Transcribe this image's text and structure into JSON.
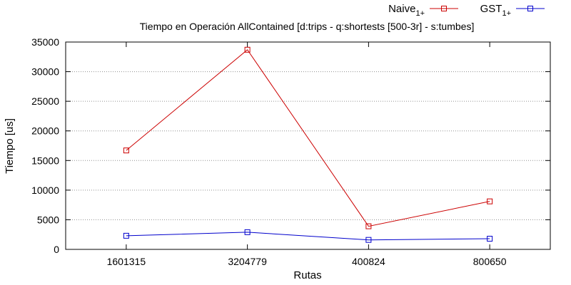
{
  "chart_data": {
    "type": "line",
    "title": "Tiempo en Operación AllContained [d:trips - q:shortests [500-3r] - s:tumbes]",
    "xlabel": "Rutas",
    "ylabel": "Tiempo [us]",
    "categories": [
      "1601315",
      "3204779",
      "400824",
      "800650"
    ],
    "ylim": [
      0,
      35000
    ],
    "yticks": [
      0,
      5000,
      10000,
      15000,
      20000,
      25000,
      30000,
      35000
    ],
    "grid": true,
    "legend_position": "top-right",
    "series": [
      {
        "name": "Naive",
        "name_sub": "1+",
        "color": "#cc0000",
        "marker": "square",
        "values": [
          16700,
          33700,
          3900,
          8100
        ]
      },
      {
        "name": "GST",
        "name_sub": "1+",
        "color": "#0000cc",
        "marker": "square",
        "values": [
          2300,
          2900,
          1600,
          1800
        ]
      }
    ]
  }
}
